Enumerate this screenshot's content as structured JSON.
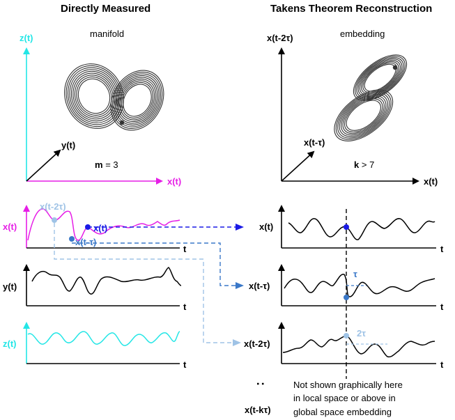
{
  "left": {
    "title": "Directly Measured",
    "manifold_label": "manifold",
    "axis_z": "z(t)",
    "axis_y": "y(t)",
    "axis_x": "x(t)",
    "m_label": "m",
    "m_value": "= 3",
    "series": {
      "x_label": "x(t)",
      "y_label": "y(t)",
      "z_label": "z(t)",
      "t_label": "t",
      "point_x": "x(t)",
      "point_xtau": "x(t-τ)",
      "point_x2tau": "x(t-2τ)"
    }
  },
  "right": {
    "title": "Takens Theorem Reconstruction",
    "embedding_label": "embedding",
    "axis_top": "x(t-2τ)",
    "axis_diag": "x(t-τ)",
    "axis_x": "x(t)",
    "k_label": "k",
    "k_value": "> 7",
    "series": {
      "x_label": "x(t)",
      "xtau_label": "x(t-τ)",
      "x2tau_label": "x(t-2τ)",
      "t_label": "t",
      "tau": "τ",
      "two_tau": "2τ"
    },
    "dots": ":",
    "xktau_label": "x(t-kτ)",
    "note": [
      "Not shown graphically here",
      "in local space or above in",
      "global space embedding"
    ]
  },
  "colors": {
    "magenta": "#e61ee6",
    "cyan": "#23e6e6",
    "dark_blue": "#1a1ae6",
    "mid_blue": "#3a78c8",
    "light_blue": "#9fc3e6",
    "black": "#000000"
  }
}
